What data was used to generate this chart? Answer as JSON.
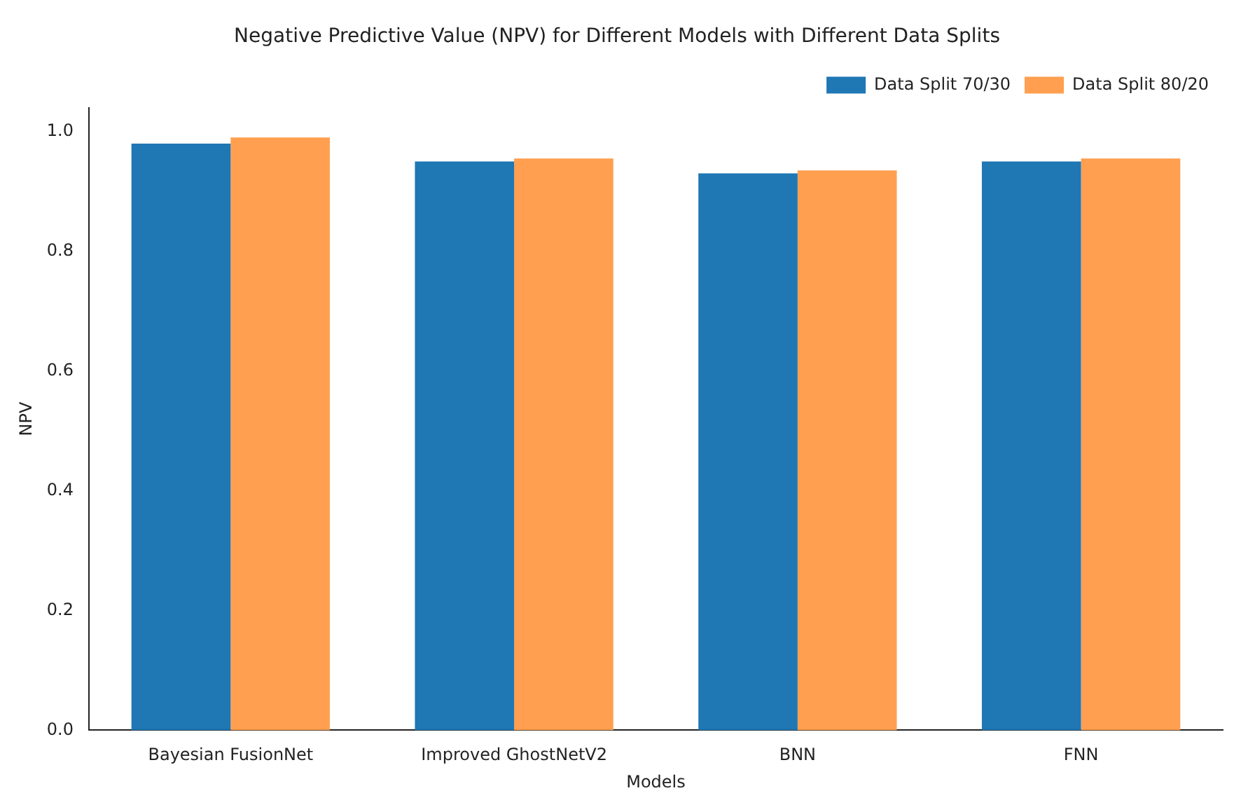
{
  "chart_data": {
    "type": "bar",
    "title": "Negative Predictive Value (NPV) for Different Models with Different Data Splits",
    "xlabel": "Models",
    "ylabel": "NPV",
    "categories": [
      "Bayesian FusionNet",
      "Improved GhostNetV2",
      "BNN",
      "FNN"
    ],
    "series": [
      {
        "name": "Data Split 70/30",
        "color": "#1f77b4",
        "values": [
          0.98,
          0.95,
          0.93,
          0.95
        ]
      },
      {
        "name": "Data Split 80/20",
        "color": "#ff9f4f",
        "values": [
          0.99,
          0.955,
          0.935,
          0.955
        ]
      }
    ],
    "ylim": [
      0,
      1.04
    ],
    "yticks": [
      {
        "value": 0,
        "label": "0.0"
      },
      {
        "value": 0.2,
        "label": "0.2"
      },
      {
        "value": 0.4,
        "label": "0.4"
      },
      {
        "value": 0.6,
        "label": "0.6"
      },
      {
        "value": 0.8,
        "label": "0.8"
      },
      {
        "value": 1.0,
        "label": "1.0"
      }
    ],
    "grid": false,
    "legend": "top right"
  }
}
